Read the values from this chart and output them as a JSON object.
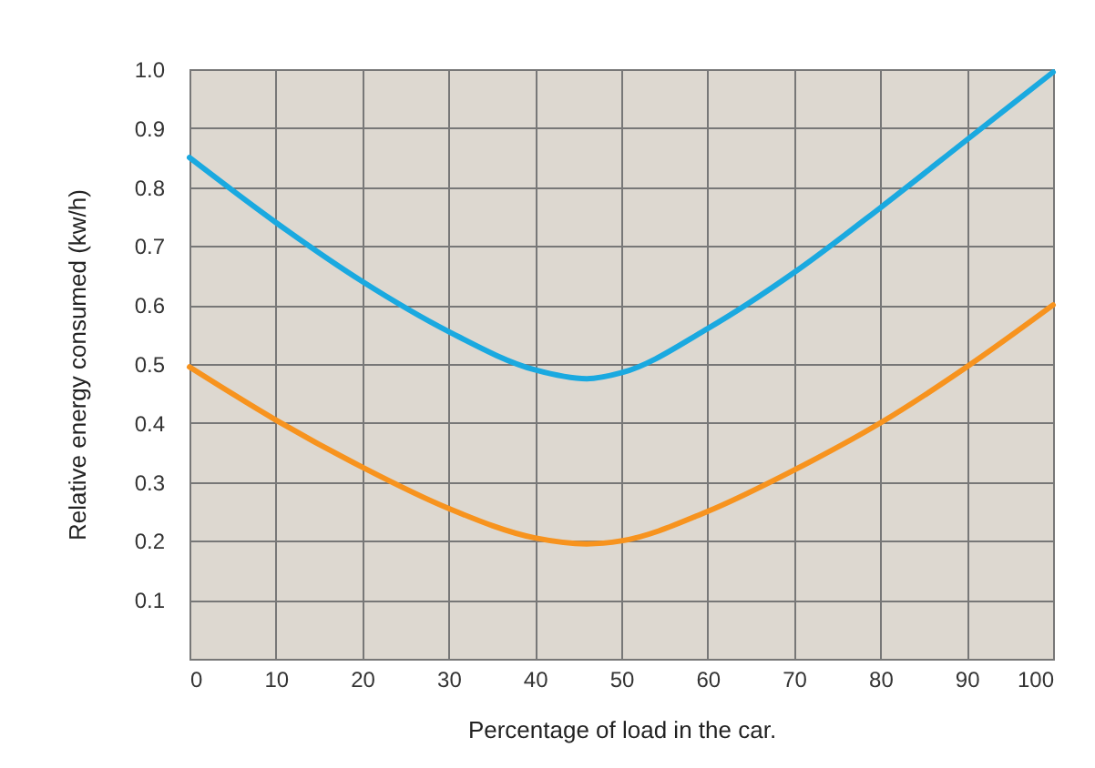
{
  "chart_data": {
    "type": "line",
    "xlabel": "Percentage of load in the car.",
    "ylabel": "Relative energy consumed (kw/h)",
    "x": [
      0,
      10,
      20,
      30,
      40,
      46,
      50,
      60,
      70,
      80,
      90,
      100
    ],
    "series": [
      {
        "color": "#1aa9e0",
        "values": [
          0.85,
          0.74,
          0.64,
          0.555,
          0.49,
          0.475,
          0.485,
          0.56,
          0.655,
          0.765,
          0.88,
          0.995
        ]
      },
      {
        "color": "#f7931e",
        "values": [
          0.495,
          0.405,
          0.325,
          0.255,
          0.205,
          0.195,
          0.2,
          0.25,
          0.32,
          0.4,
          0.495,
          0.6
        ]
      }
    ],
    "xlim": [
      0,
      100
    ],
    "xticks": [
      0,
      10,
      20,
      30,
      40,
      50,
      60,
      70,
      80,
      90,
      100
    ],
    "ylim": [
      0,
      1
    ],
    "yticks": [
      {
        "value": 0,
        "label": null
      },
      0.1,
      0.2,
      0.3,
      0.4,
      0.5,
      0.6,
      0.7,
      0.8,
      0.9,
      {
        "value": 1,
        "label": "1.0"
      }
    ],
    "grid": true,
    "legend": false,
    "marker": "none",
    "line_style": "solid"
  }
}
